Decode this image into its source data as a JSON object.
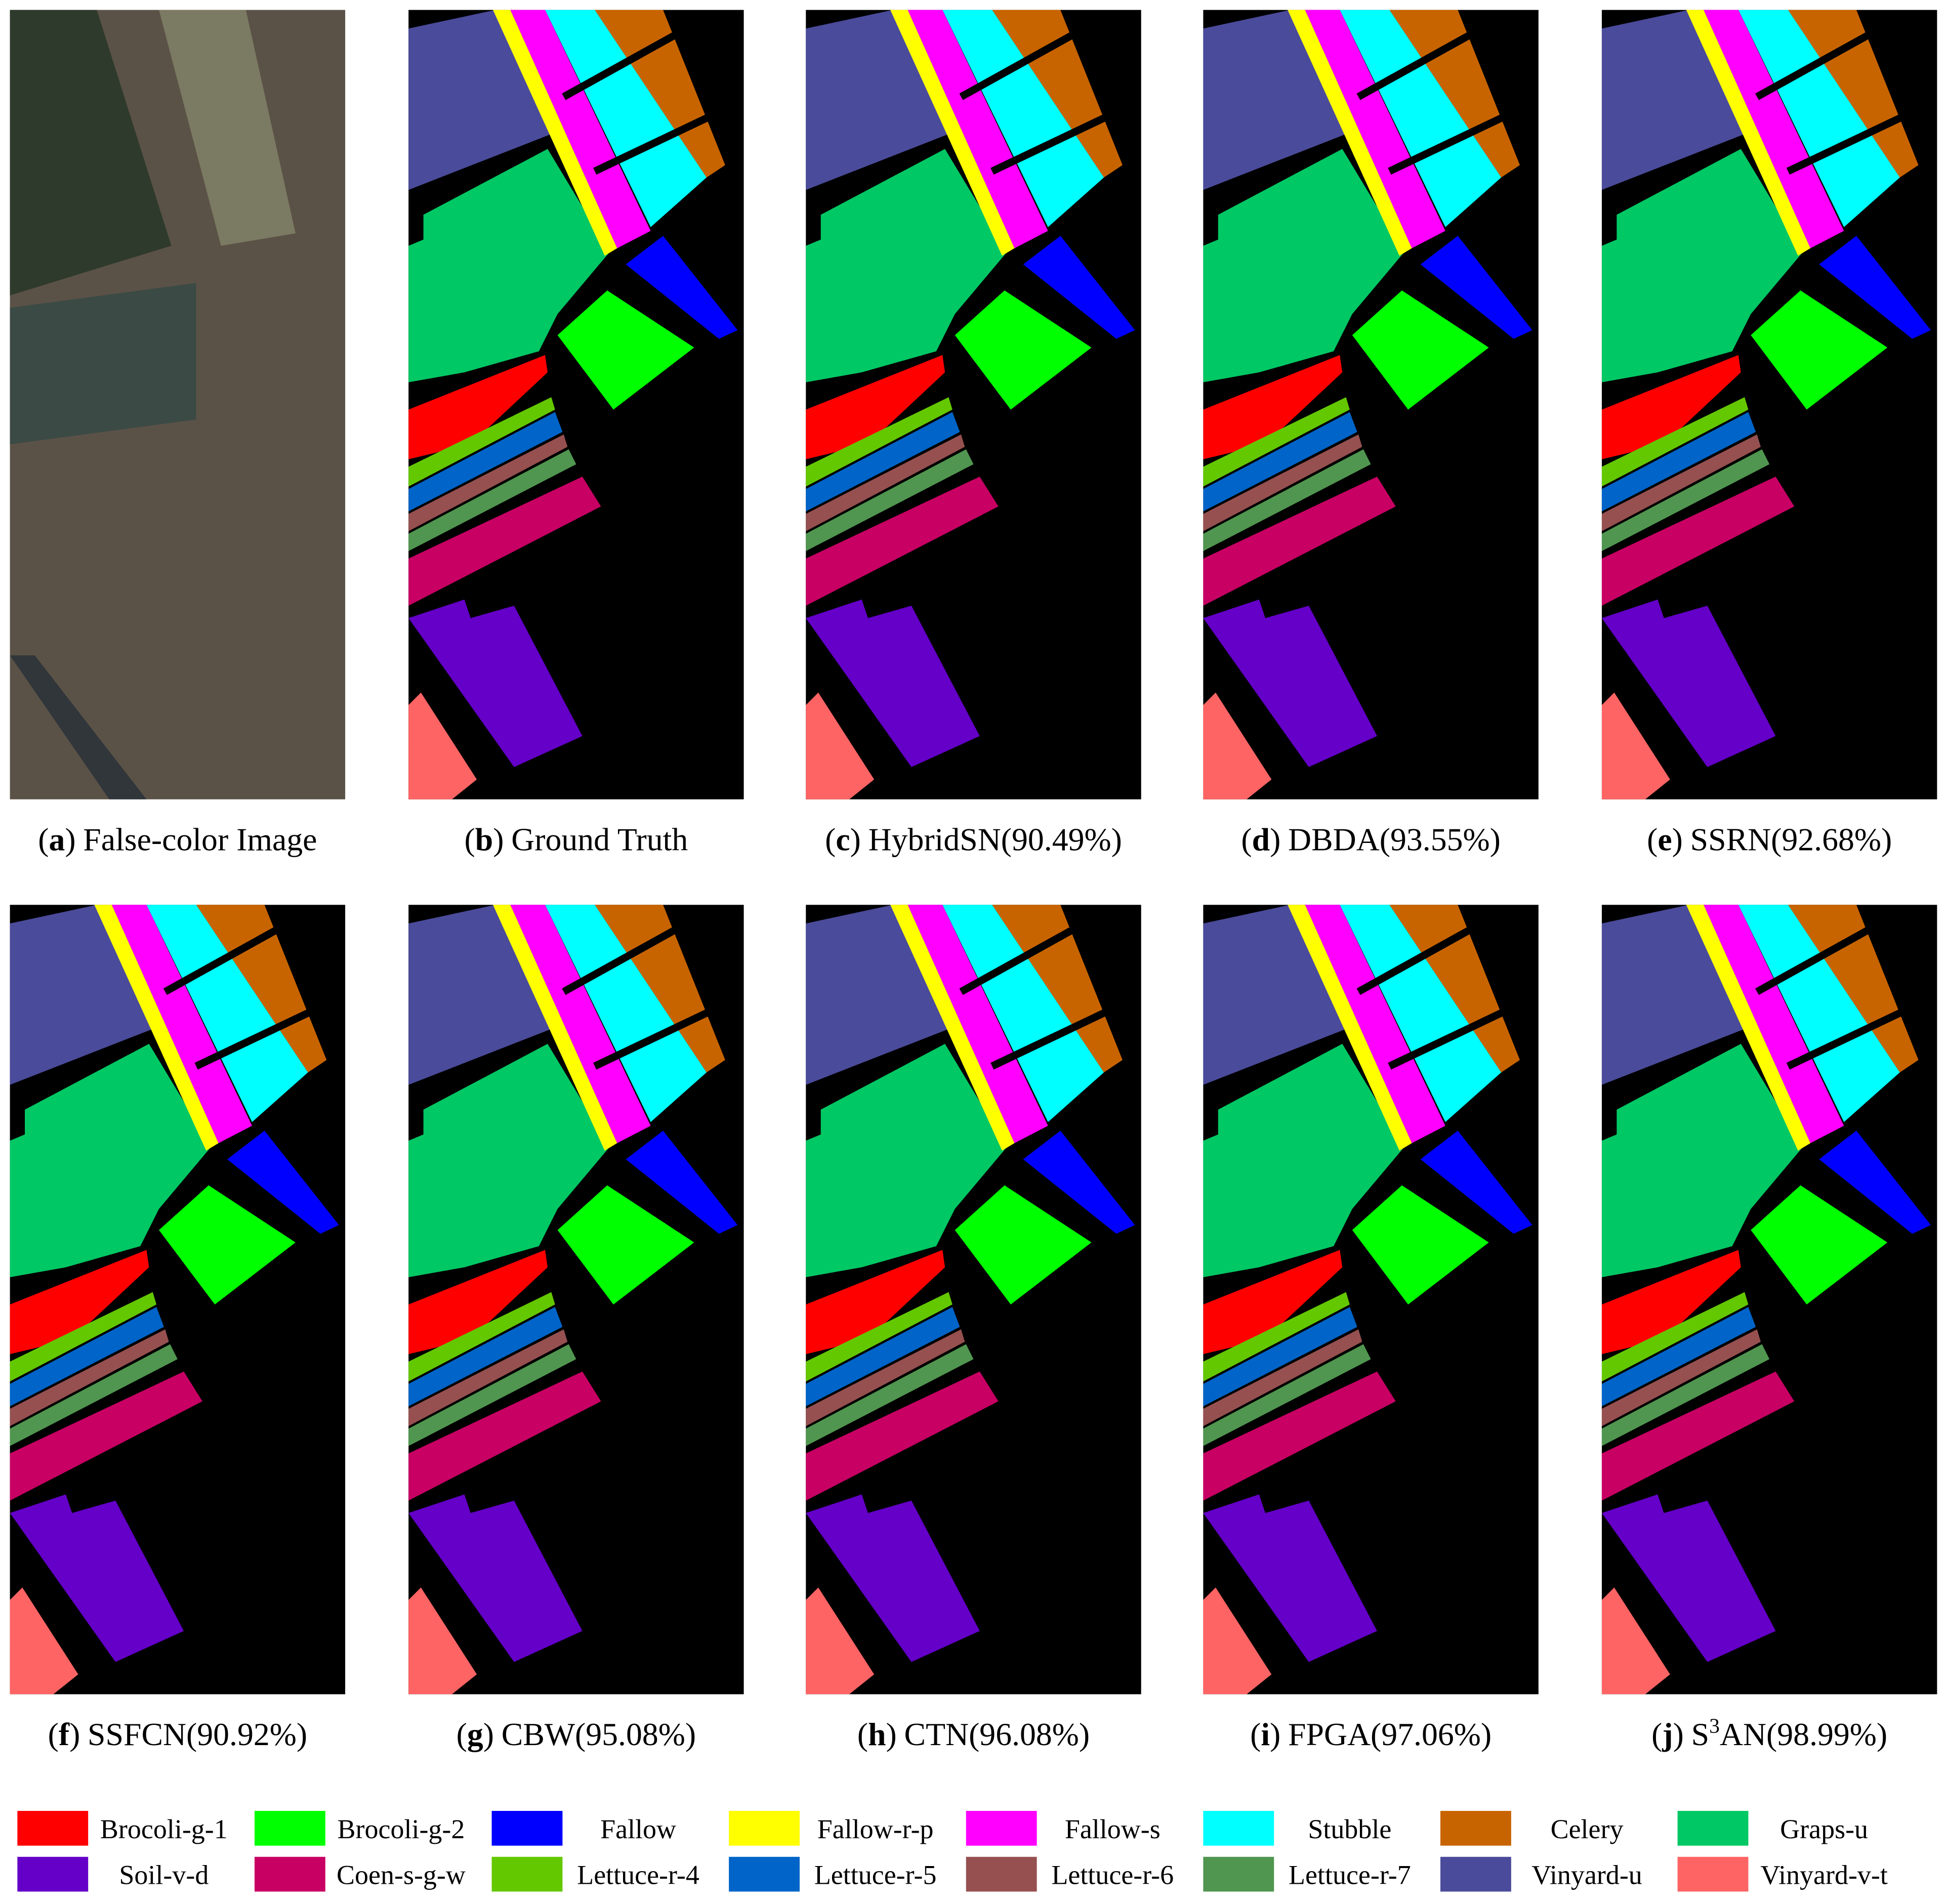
{
  "brackets": [
    "(",
    ")"
  ],
  "panels": [
    {
      "letter": "a",
      "caption": "False-color Image"
    },
    {
      "letter": "b",
      "caption": "Ground Truth"
    },
    {
      "letter": "c",
      "caption": "HybridSN(90.49%)"
    },
    {
      "letter": "d",
      "caption": "DBDA(93.55%)"
    },
    {
      "letter": "e",
      "caption": "SSRN(92.68%)"
    },
    {
      "letter": "f",
      "caption": "SSFCN(90.92%)"
    },
    {
      "letter": "g",
      "caption": "CBW(95.08%)"
    },
    {
      "letter": "h",
      "caption": "CTN(96.08%)"
    },
    {
      "letter": "i",
      "caption": "FPGA(97.06%)"
    },
    {
      "letter": "j",
      "caption": "S",
      "superscript": "3",
      "caption_end": "AN(98.99%)"
    }
  ],
  "legend": [
    {
      "name": "Brocoli-g-1",
      "color": "#ff0000"
    },
    {
      "name": "Brocoli-g-2",
      "color": "#00ff00"
    },
    {
      "name": "Fallow",
      "color": "#0000ff"
    },
    {
      "name": "Fallow-r-p",
      "color": "#ffff00"
    },
    {
      "name": "Fallow-s",
      "color": "#ff00ff"
    },
    {
      "name": "Stubble",
      "color": "#00ffff"
    },
    {
      "name": "Celery",
      "color": "#c86400"
    },
    {
      "name": "Graps-u",
      "color": "#00c864"
    },
    {
      "name": "Soil-v-d",
      "color": "#6400c8"
    },
    {
      "name": "Coen-s-g-w",
      "color": "#c80064"
    },
    {
      "name": "Lettuce-r-4",
      "color": "#64c800"
    },
    {
      "name": "Lettuce-r-5",
      "color": "#0064c8"
    },
    {
      "name": "Lettuce-r-6",
      "color": "#965050"
    },
    {
      "name": "Lettuce-r-7",
      "color": "#509650"
    },
    {
      "name": "Vinyard-u",
      "color": "#4b4b9b"
    },
    {
      "name": "Vinyard-v-t",
      "color": "#ff6464"
    }
  ]
}
